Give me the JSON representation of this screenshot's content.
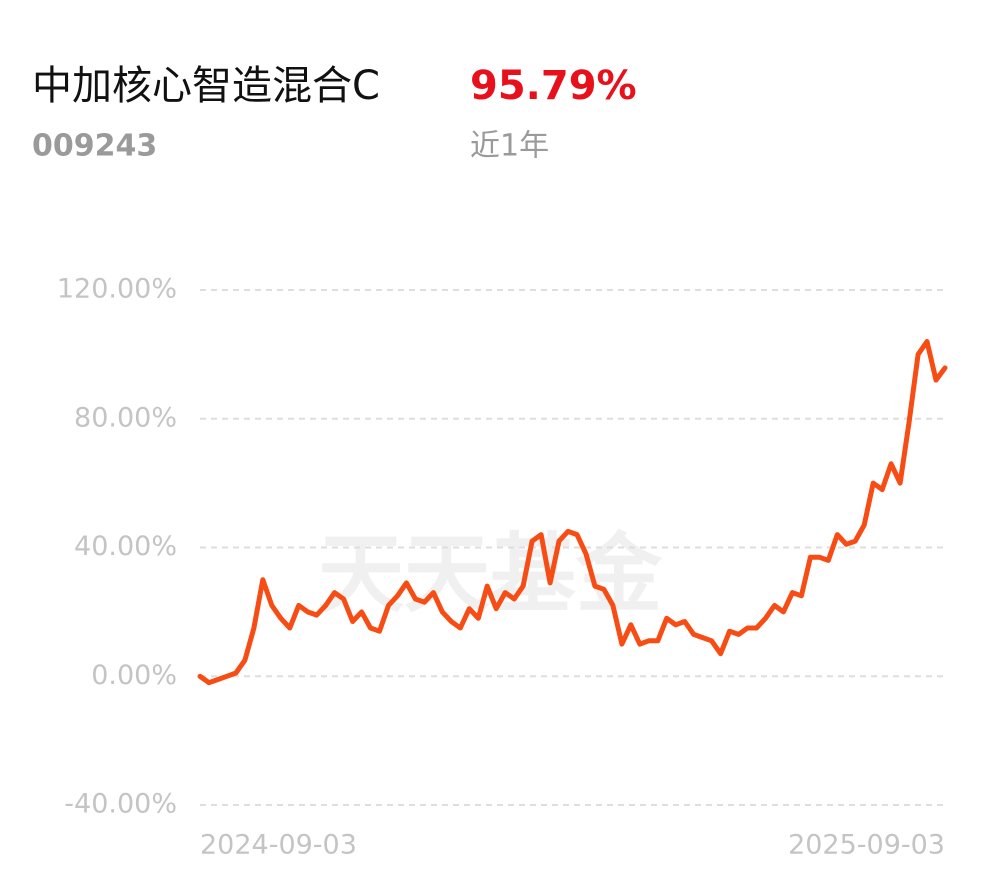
{
  "chart_data": {
    "type": "line",
    "title": "中加核心智造混合C",
    "return_text": "95.79%",
    "code": "009243",
    "period": "近1年",
    "watermark": "天天基金",
    "ylim": [
      -40,
      120
    ],
    "yticks": [
      {
        "value": -40,
        "label": "-40.00%"
      },
      {
        "value": 0,
        "label": "0.00%"
      },
      {
        "value": 40,
        "label": "40.00%"
      },
      {
        "value": 80,
        "label": "80.00%"
      },
      {
        "value": 120,
        "label": "120.00%"
      }
    ],
    "grid": true,
    "categories": [
      "2024-09-03",
      null,
      null,
      null,
      null,
      null,
      null,
      null,
      null,
      null,
      null,
      null,
      null,
      null,
      null,
      null,
      null,
      null,
      null,
      null,
      null,
      null,
      null,
      null,
      null,
      null,
      null,
      null,
      null,
      null,
      null,
      null,
      null,
      null,
      null,
      null,
      null,
      null,
      null,
      null,
      null,
      null,
      null,
      null,
      null,
      null,
      null,
      null,
      null,
      null,
      null,
      null,
      null,
      null,
      null,
      null,
      null,
      null,
      null,
      null,
      null,
      null,
      null,
      null,
      null,
      null,
      null,
      null,
      null,
      null,
      null,
      null,
      null,
      null,
      null,
      null,
      null,
      null,
      null,
      null,
      null,
      null,
      null,
      "2025-09-03"
    ],
    "series": [
      {
        "color": "#f74d14",
        "values": [
          0,
          -2,
          -1,
          0,
          1,
          5,
          15,
          30,
          22,
          18,
          15,
          22,
          20,
          19,
          22,
          26,
          24,
          17,
          20,
          15,
          14,
          22,
          25,
          29,
          24,
          23,
          26,
          20,
          17,
          15,
          21,
          18,
          28,
          21,
          26,
          24,
          28,
          42,
          44,
          29,
          42,
          45,
          44,
          38,
          28,
          27,
          22,
          10,
          16,
          10,
          11,
          11,
          18,
          16,
          17,
          13,
          12,
          11,
          7,
          14,
          13,
          15,
          15,
          18,
          22,
          20,
          26,
          25,
          37,
          37,
          36,
          44,
          41,
          42,
          47,
          60,
          58,
          66,
          60,
          79,
          100,
          104,
          92,
          95.79
        ]
      }
    ]
  }
}
